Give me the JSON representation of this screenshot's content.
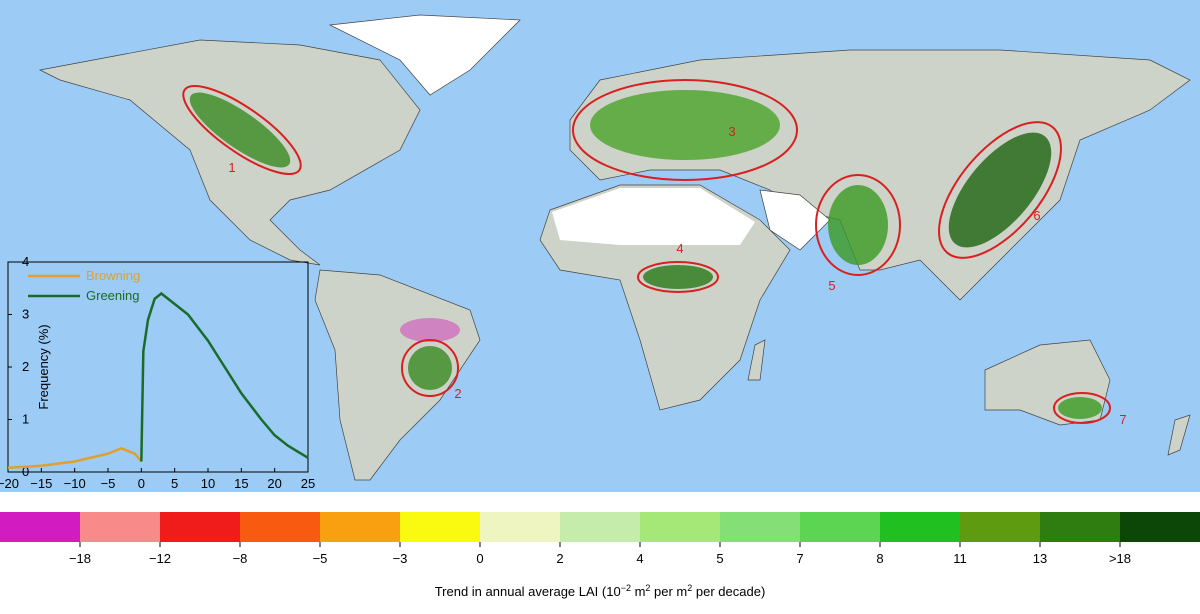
{
  "regions": [
    {
      "label": "1"
    },
    {
      "label": "2"
    },
    {
      "label": "3"
    },
    {
      "label": "4"
    },
    {
      "label": "5"
    },
    {
      "label": "6"
    },
    {
      "label": "7"
    }
  ],
  "chart_data": {
    "type": "line",
    "ylabel": "Frequency (%)",
    "xlim": [
      -20,
      25
    ],
    "ylim": [
      0,
      4
    ],
    "xticks": [
      {
        "value": -20,
        "label": "−20"
      },
      {
        "value": -15,
        "label": "−15"
      },
      {
        "value": -10,
        "label": "−10"
      },
      {
        "value": -5,
        "label": "−5"
      },
      0,
      5,
      10,
      15,
      20,
      25
    ],
    "yticks": [
      0,
      1,
      2,
      3,
      4
    ],
    "series": [
      {
        "name": "Browning",
        "color": "#e0a030",
        "x": [
          -20,
          -15,
          -10,
          -5,
          -3,
          -1,
          0
        ],
        "values": [
          0.08,
          0.12,
          0.2,
          0.35,
          0.45,
          0.35,
          0.2
        ]
      },
      {
        "name": "Greening",
        "color": "#1a6b2a",
        "x": [
          0,
          0.3,
          1,
          2,
          3,
          4,
          5,
          7,
          10,
          12,
          15,
          18,
          20,
          22,
          25
        ],
        "values": [
          0.2,
          2.3,
          2.9,
          3.3,
          3.4,
          3.3,
          3.2,
          3.0,
          2.5,
          2.1,
          1.5,
          1.0,
          0.7,
          0.5,
          0.27
        ]
      }
    ]
  },
  "colorbar": {
    "colors": [
      "#d21bc0",
      "#f98a8a",
      "#f01c1c",
      "#f85a10",
      "#f9a010",
      "#fafa10",
      "#eef5c0",
      "#c5ecaa",
      "#a6e878",
      "#84e076",
      "#5cd652",
      "#20c020",
      "#5e9b10",
      "#2f7d10",
      "#0c4708"
    ],
    "labels": [
      "−18",
      "−12",
      "−8",
      "−5",
      "−3",
      "0",
      "2",
      "4",
      "5",
      "7",
      "8",
      "11",
      "13",
      ">18"
    ],
    "title_parts": [
      "Trend in annual average LAI (10",
      "−2",
      " m",
      "2",
      " per m",
      "2",
      " per decade)"
    ]
  }
}
